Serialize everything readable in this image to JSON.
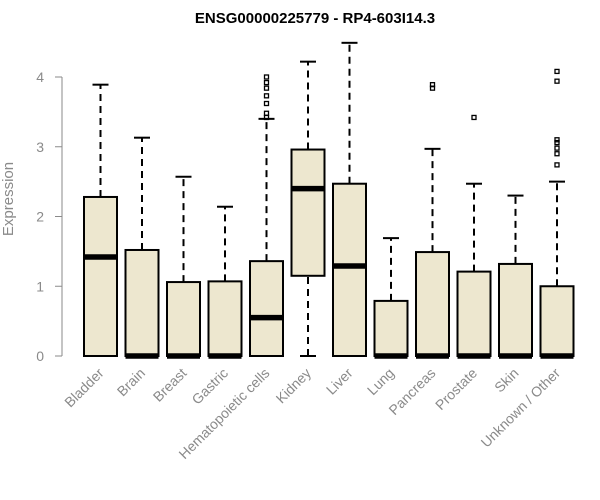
{
  "chart_data": {
    "type": "boxplot",
    "title": "ENSG00000225779 - RP4-603I14.3",
    "xlabel": "",
    "ylabel": "Expression",
    "ylim": [
      0,
      4
    ],
    "yticks": [
      0,
      1,
      2,
      3,
      4
    ],
    "grid": false,
    "colors": {
      "box_fill": "#ede7cf",
      "box_stroke": "#000000",
      "median": "#000000",
      "axis_text": "#8a8a8a"
    },
    "categories": [
      "Bladder",
      "Brain",
      "Breast",
      "Gastric",
      "Hematopoietic cells",
      "Kidney",
      "Liver",
      "Lung",
      "Pancreas",
      "Prostate",
      "Skin",
      "Unknown / Other"
    ],
    "boxes": [
      {
        "min": 0,
        "q1": 0,
        "median": 1.42,
        "q3": 2.28,
        "max": 3.89,
        "outliers": []
      },
      {
        "min": 0,
        "q1": 0,
        "median": 0,
        "q3": 1.52,
        "max": 3.13,
        "outliers": []
      },
      {
        "min": 0,
        "q1": 0,
        "median": 0,
        "q3": 1.06,
        "max": 2.57,
        "outliers": []
      },
      {
        "min": 0,
        "q1": 0,
        "median": 0,
        "q3": 1.07,
        "max": 2.14,
        "outliers": []
      },
      {
        "min": 0,
        "q1": 0,
        "median": 0.55,
        "q3": 1.36,
        "max": 3.4,
        "outliers": [
          3.42,
          3.48,
          3.62,
          3.73,
          3.84,
          3.92,
          4.0
        ]
      },
      {
        "min": 0,
        "q1": 1.15,
        "median": 2.4,
        "q3": 2.96,
        "max": 4.22,
        "outliers": []
      },
      {
        "min": 0,
        "q1": 0,
        "median": 1.29,
        "q3": 2.47,
        "max": 4.49,
        "outliers": []
      },
      {
        "min": 0,
        "q1": 0,
        "median": 0,
        "q3": 0.79,
        "max": 1.69,
        "outliers": []
      },
      {
        "min": 0,
        "q1": 0,
        "median": 0,
        "q3": 1.49,
        "max": 2.97,
        "outliers": [
          3.84,
          3.89
        ]
      },
      {
        "min": 0,
        "q1": 0,
        "median": 0,
        "q3": 1.21,
        "max": 2.47,
        "outliers": [
          3.42
        ]
      },
      {
        "min": 0,
        "q1": 0,
        "median": 0,
        "q3": 1.32,
        "max": 2.3,
        "outliers": []
      },
      {
        "min": 0,
        "q1": 0,
        "median": 0,
        "q3": 1.0,
        "max": 2.5,
        "outliers": [
          2.74,
          2.9,
          2.98,
          3.06,
          3.1,
          3.94,
          4.08
        ]
      }
    ]
  }
}
